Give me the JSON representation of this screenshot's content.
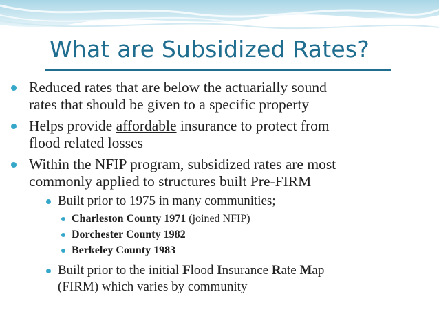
{
  "slide": {
    "title": "What are Subsidized Rates?",
    "accent_color": "#1f6d8f",
    "bullet_color": "#35a7c9"
  },
  "bullets": {
    "b1_line1": "Reduced rates that are below the actuarially sound",
    "b1_line2": "rates that should be given to a specific property",
    "b2_pre": "Helps provide ",
    "b2_underlined": "affordable",
    "b2_post": " insurance to protect from",
    "b2_line2": "flood related losses",
    "b3_line1": "Within the NFIP program, subsidized rates are most",
    "b3_line2": "commonly applied to structures built Pre-FIRM",
    "sub1": "Built prior to 1975 in many communities;",
    "county1_name": "Charleston County 1971",
    "county1_note": " (joined NFIP)",
    "county2_name": "Dorchester County 1982",
    "county3_name": "Berkeley County 1983",
    "sub2_a": "Built prior to the initial ",
    "sub2_f": "F",
    "sub2_b": "lood ",
    "sub2_i": "I",
    "sub2_c": "nsurance ",
    "sub2_r": "R",
    "sub2_d": "ate ",
    "sub2_m": "M",
    "sub2_e": "ap",
    "sub2_line2": "(FIRM) which varies by community"
  }
}
